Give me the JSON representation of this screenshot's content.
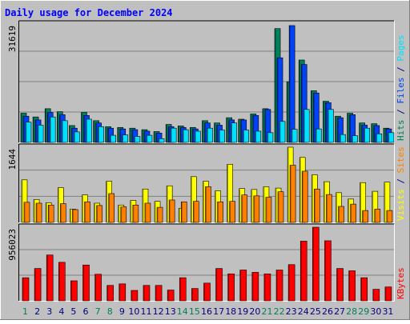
{
  "colors": {
    "background": "#c0c0c0",
    "plot_background": "#c0c0c0",
    "title": "#0000ff",
    "hits": "#00805c",
    "files": "#0042f8",
    "pages": "#00e0ff",
    "visits": "#ffff00",
    "sites": "#ff8000",
    "kbytes": "#ff0000",
    "weekday_label": "#000080",
    "weekend_label": "#00805c"
  },
  "chart_data": {
    "type": "bar",
    "title": "Daily usage for December 2024",
    "categories": [
      "1",
      "2",
      "3",
      "4",
      "5",
      "6",
      "7",
      "8",
      "9",
      "10",
      "11",
      "12",
      "13",
      "14",
      "15",
      "16",
      "17",
      "18",
      "19",
      "20",
      "21",
      "22",
      "23",
      "24",
      "25",
      "26",
      "27",
      "28",
      "29",
      "30",
      "31"
    ],
    "weekend_days": [
      "1",
      "7",
      "8",
      "14",
      "15",
      "21",
      "22",
      "28",
      "29"
    ],
    "panels": [
      {
        "axis_max_label": "31619",
        "ylim": [
          0,
          31619
        ],
        "legend": [
          {
            "text": "Hits",
            "color": "#00805c"
          },
          {
            "text": " / ",
            "color": "#000080"
          },
          {
            "text": "Files",
            "color": "#0042f8"
          },
          {
            "text": " / ",
            "color": "#000080"
          },
          {
            "text": "Pages",
            "color": "#00e0ff"
          }
        ],
        "series": [
          {
            "name": "Hits",
            "color": "#00805c",
            "values": [
              7800,
              6800,
              9000,
              8200,
              4500,
              8000,
              5800,
              4200,
              4000,
              3800,
              3400,
              2900,
              4800,
              4400,
              4000,
              5800,
              5200,
              6600,
              6200,
              7600,
              9000,
              30400,
              16200,
              22000,
              13800,
              11000,
              7000,
              7800,
              5200,
              5000,
              3800
            ]
          },
          {
            "name": "Files",
            "color": "#0042f8",
            "values": [
              7000,
              6000,
              8000,
              7400,
              3800,
              7200,
              5200,
              3800,
              3600,
              3400,
              3000,
              2500,
              4200,
              4000,
              3600,
              5200,
              4600,
              6000,
              6000,
              7200,
              8800,
              22600,
              31200,
              20800,
              13200,
              10600,
              6600,
              7400,
              4600,
              4500,
              3600
            ]
          },
          {
            "name": "Pages",
            "color": "#00e0ff",
            "values": [
              5400,
              4600,
              6800,
              5800,
              2800,
              6200,
              4200,
              1900,
              2000,
              1600,
              1900,
              1000,
              3800,
              3400,
              3000,
              3800,
              3300,
              5200,
              3300,
              3000,
              2600,
              5600,
              3500,
              8800,
              3600,
              8800,
              2100,
              1800,
              3800,
              2300,
              2600
            ]
          }
        ]
      },
      {
        "axis_max_label": "1644",
        "ylim": [
          0,
          1644
        ],
        "legend": [
          {
            "text": "Visits",
            "color": "#ffff00"
          },
          {
            "text": " / ",
            "color": "#000080"
          },
          {
            "text": "Sites",
            "color": "#ff8000"
          }
        ],
        "series": [
          {
            "name": "Visits",
            "color": "#ffff00",
            "values": [
              930,
              500,
              430,
              760,
              290,
              600,
              420,
              900,
              380,
              480,
              730,
              460,
              800,
              310,
              1000,
              900,
              690,
              1270,
              740,
              720,
              780,
              750,
              1650,
              1420,
              1040,
              890,
              650,
              510,
              870,
              680,
              880
            ]
          },
          {
            "name": "Sites",
            "color": "#ff8000",
            "values": [
              440,
              420,
              380,
              410,
              280,
              450,
              370,
              630,
              340,
              380,
              420,
              330,
              490,
              450,
              460,
              780,
              450,
              460,
              600,
              580,
              550,
              670,
              1250,
              1120,
              730,
              610,
              350,
              400,
              260,
              290,
              260
            ]
          }
        ]
      },
      {
        "axis_max_label": "956023",
        "ylim": [
          0,
          956023
        ],
        "legend": [
          {
            "text": "KBytes",
            "color": "#ff0000"
          }
        ],
        "series": [
          {
            "name": "KBytes",
            "color": "#ff0000",
            "values": [
              300000,
              420000,
              595000,
              500000,
              260000,
              465000,
              345000,
              200000,
              220000,
              135000,
              200000,
              200000,
              140000,
              300000,
              160000,
              230000,
              420000,
              350000,
              400000,
              370000,
              350000,
              400000,
              470000,
              775000,
              956000,
              780000,
              420000,
              390000,
              300000,
              150000,
              180000
            ]
          }
        ]
      }
    ]
  }
}
